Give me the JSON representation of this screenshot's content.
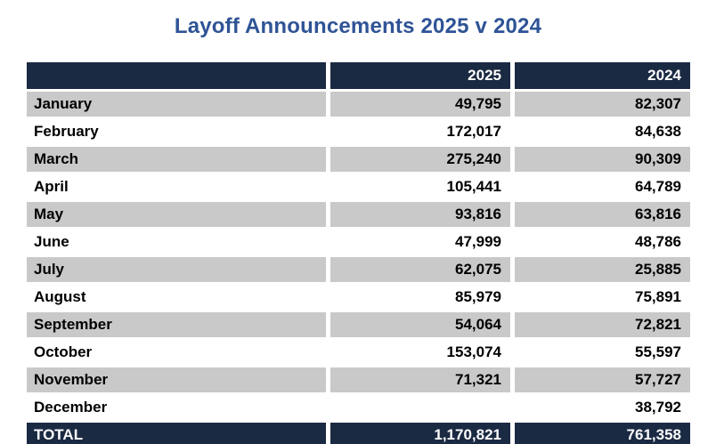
{
  "title": "Layoff Announcements 2025 v 2024",
  "colors": {
    "title_blue": "#2f5496",
    "header_navy": "#1b2a43",
    "stripe_grey": "#c9c9c9",
    "body_text": "#000000",
    "header_text": "#ffffff"
  },
  "table": {
    "header": {
      "col1": "",
      "col2": "2025",
      "col3": "2024"
    },
    "rows": [
      {
        "label": "January",
        "v2025": "49,795",
        "v2024": "82,307"
      },
      {
        "label": "February",
        "v2025": "172,017",
        "v2024": "84,638"
      },
      {
        "label": "March",
        "v2025": "275,240",
        "v2024": "90,309"
      },
      {
        "label": "April",
        "v2025": "105,441",
        "v2024": "64,789"
      },
      {
        "label": "May",
        "v2025": "93,816",
        "v2024": "63,816"
      },
      {
        "label": "June",
        "v2025": "47,999",
        "v2024": "48,786"
      },
      {
        "label": "July",
        "v2025": "62,075",
        "v2024": "25,885"
      },
      {
        "label": "August",
        "v2025": "85,979",
        "v2024": "75,891"
      },
      {
        "label": "September",
        "v2025": "54,064",
        "v2024": "72,821"
      },
      {
        "label": "October",
        "v2025": "153,074",
        "v2024": "55,597"
      },
      {
        "label": "November",
        "v2025": "71,321",
        "v2024": "57,727"
      },
      {
        "label": "December",
        "v2025": "",
        "v2024": "38,792"
      }
    ],
    "total": {
      "label": "TOTAL",
      "v2025": "1,170,821",
      "v2024": "761,358"
    }
  },
  "chart_data": {
    "type": "table",
    "title": "Layoff Announcements 2025 v 2024",
    "categories": [
      "January",
      "February",
      "March",
      "April",
      "May",
      "June",
      "July",
      "August",
      "September",
      "October",
      "November",
      "December"
    ],
    "series": [
      {
        "name": "2025",
        "values": [
          49795,
          172017,
          275240,
          105441,
          93816,
          47999,
          62075,
          85979,
          54064,
          153074,
          71321,
          null
        ]
      },
      {
        "name": "2024",
        "values": [
          82307,
          84638,
          90309,
          64789,
          63816,
          48786,
          25885,
          75891,
          72821,
          55597,
          57727,
          38792
        ]
      }
    ],
    "totals": {
      "2025": 1170821,
      "2024": 761358
    }
  }
}
